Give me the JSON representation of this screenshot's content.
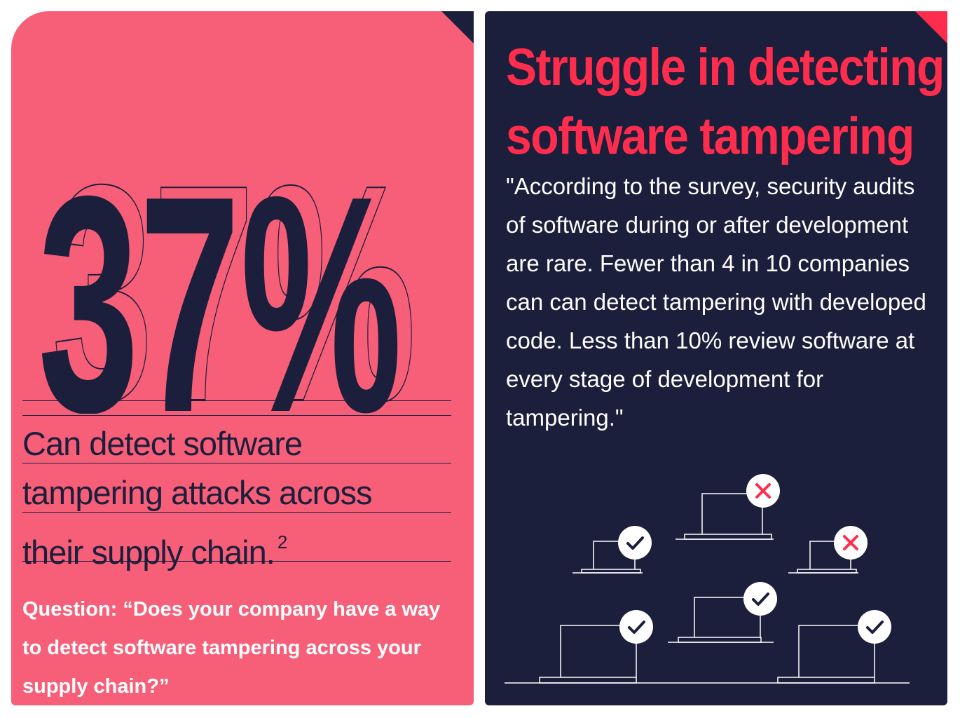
{
  "left_card": {
    "stat": "37%",
    "statement_lines": [
      "Can detect software",
      "tampering attacks across",
      "their supply chain."
    ],
    "footnote": "2",
    "question": "Question: “Does your company have a way to detect software tampering across your supply chain?”"
  },
  "right_card": {
    "headline_lines": [
      "Struggle in detecting",
      "software tampering"
    ],
    "quote": "\"According to the survey, security audits of software during or after development are rare. Fewer than 4 in 10 companies can can detect tampering with developed code. Less than 10% review software at every stage of development for tampering.\"",
    "laptops": [
      {
        "status": "fail",
        "icon": "x-mark-icon"
      },
      {
        "status": "pass",
        "icon": "check-mark-icon"
      },
      {
        "status": "fail",
        "icon": "x-mark-icon"
      },
      {
        "status": "pass",
        "icon": "check-mark-icon"
      },
      {
        "status": "pass",
        "icon": "check-mark-icon"
      },
      {
        "status": "pass",
        "icon": "check-mark-icon"
      }
    ]
  },
  "colors": {
    "pink": "#f75f79",
    "navy": "#1b1f3b",
    "red": "#ff2d4d",
    "white": "#ffffff"
  }
}
